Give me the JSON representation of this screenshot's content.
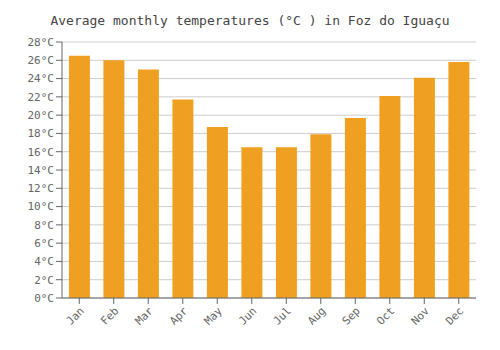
{
  "chart_data": {
    "type": "bar",
    "title": "Average monthly temperatures (°C ) in Foz do Iguaçu",
    "categories": [
      "Jan",
      "Feb",
      "Mar",
      "Apr",
      "May",
      "Jun",
      "Jul",
      "Aug",
      "Sep",
      "Oct",
      "Nov",
      "Dec"
    ],
    "values": [
      26.5,
      26.0,
      25.0,
      21.7,
      18.7,
      16.5,
      16.5,
      17.9,
      19.7,
      22.1,
      24.1,
      25.8
    ],
    "color": "#F0A020",
    "ylim": [
      0,
      28
    ],
    "yticks": [
      {
        "value": 0,
        "label": "0°C"
      },
      {
        "value": 2,
        "label": "2°C"
      },
      {
        "value": 4,
        "label": "4°C"
      },
      {
        "value": 6,
        "label": "6°C"
      },
      {
        "value": 8,
        "label": "8°C"
      },
      {
        "value": 10,
        "label": "10°C"
      },
      {
        "value": 12,
        "label": "12°C"
      },
      {
        "value": 14,
        "label": "14°C"
      },
      {
        "value": 16,
        "label": "16°C"
      },
      {
        "value": 18,
        "label": "18°C"
      },
      {
        "value": 20,
        "label": "20°C"
      },
      {
        "value": 22,
        "label": "22°C"
      },
      {
        "value": 24,
        "label": "24°C"
      },
      {
        "value": 26,
        "label": "26°C"
      },
      {
        "value": 28,
        "label": "28°C"
      }
    ],
    "grid": true
  }
}
